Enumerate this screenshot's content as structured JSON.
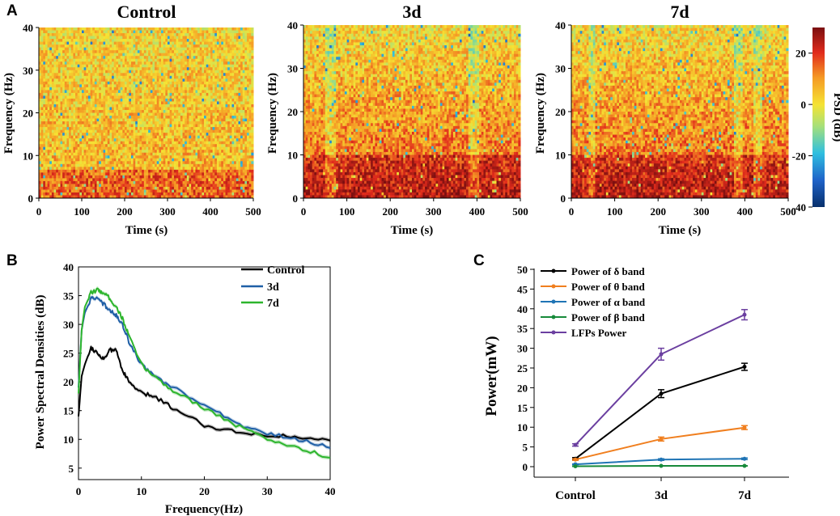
{
  "panel_labels": {
    "a": "A",
    "b": "B",
    "c": "C"
  },
  "colors": {
    "control": "#000000",
    "d3": "#1f5fa6",
    "d7": "#2db52d",
    "delta": "#000000",
    "theta": "#f07f1f",
    "alpha": "#1f74b5",
    "beta": "#178a3a",
    "lfp": "#6b3fa0"
  },
  "chart_data": [
    {
      "type": "heatmap",
      "title": "Control",
      "xlabel": "Time (s)",
      "ylabel": "Frequency (Hz)",
      "xlim": [
        0,
        500
      ],
      "ylim": [
        0,
        40
      ],
      "xticks": [
        "0",
        "100",
        "200",
        "300",
        "400",
        "500"
      ],
      "yticks": [
        "0",
        "10",
        "20",
        "30",
        "40"
      ],
      "strong_band_hz": [
        0,
        7
      ]
    },
    {
      "type": "heatmap",
      "title": "3d",
      "xlabel": "Time (s)",
      "ylabel": "Frequency (Hz)",
      "xlim": [
        0,
        500
      ],
      "ylim": [
        0,
        40
      ],
      "xticks": [
        "0",
        "100",
        "200",
        "300",
        "400",
        "500"
      ],
      "yticks": [
        "0",
        "10",
        "20",
        "30",
        "40"
      ],
      "strong_band_hz": [
        0,
        10
      ]
    },
    {
      "type": "heatmap",
      "title": "7d",
      "xlabel": "Time (s)",
      "ylabel": "Frequency (Hz)",
      "xlim": [
        0,
        500
      ],
      "ylim": [
        0,
        40
      ],
      "xticks": [
        "0",
        "100",
        "200",
        "300",
        "400",
        "500"
      ],
      "yticks": [
        "0",
        "10",
        "20",
        "30",
        "40"
      ],
      "strong_band_hz": [
        0,
        10
      ],
      "colorbar": {
        "label": "PSD (dB)",
        "range": [
          -40,
          30
        ],
        "ticks": [
          "20",
          "0",
          "-20",
          "-40"
        ]
      }
    },
    {
      "type": "line",
      "xlabel": "Frequency(Hz)",
      "ylabel": "Power Spectral Densities (dB)",
      "xlim": [
        0,
        40
      ],
      "ylim": [
        3,
        40
      ],
      "xticks": [
        "0",
        "10",
        "20",
        "30",
        "40"
      ],
      "yticks": [
        "5",
        "10",
        "15",
        "20",
        "25",
        "30",
        "35",
        "40"
      ],
      "legend_position": "top-right",
      "series": [
        {
          "name": "Control",
          "color": "#000000",
          "x": [
            0,
            0.5,
            1,
            2,
            3,
            4,
            5,
            6,
            7,
            8,
            10,
            12,
            15,
            20,
            25,
            30,
            35,
            40
          ],
          "values": [
            14,
            21,
            23,
            26,
            25,
            24,
            25.5,
            25.5,
            22,
            20,
            18,
            17.5,
            15.5,
            12.5,
            11.3,
            10.8,
            10.3,
            9.8
          ]
        },
        {
          "name": "3d",
          "color": "#1f5fa6",
          "x": [
            0,
            0.5,
            1,
            2,
            3,
            4,
            5,
            6,
            7,
            8,
            10,
            12,
            15,
            20,
            25,
            30,
            35,
            40
          ],
          "values": [
            19,
            29,
            32,
            34.5,
            34.5,
            33.5,
            32.5,
            31.5,
            30,
            27,
            23,
            21,
            19,
            16,
            12.8,
            11,
            10,
            8.5
          ]
        },
        {
          "name": "7d",
          "color": "#2db52d",
          "x": [
            0,
            0.5,
            1,
            2,
            3,
            4,
            5,
            6,
            7,
            8,
            10,
            12,
            15,
            20,
            25,
            30,
            35,
            40
          ],
          "values": [
            18,
            29,
            33,
            35.5,
            36,
            35.5,
            34.5,
            33,
            31,
            28,
            23,
            21,
            18.5,
            15.5,
            12.5,
            10,
            8.5,
            6.8
          ]
        }
      ]
    },
    {
      "type": "line",
      "xlabel": "",
      "ylabel": "Power(mW)",
      "ylim": [
        0,
        50
      ],
      "categories": [
        "Control",
        "3d",
        "7d"
      ],
      "yticks": [
        "0",
        "5",
        "10",
        "15",
        "20",
        "25",
        "30",
        "35",
        "40",
        "45",
        "50"
      ],
      "legend_position": "top-left",
      "series": [
        {
          "name": "Power of δ band",
          "color": "#000000",
          "values": [
            2,
            18.5,
            25.3
          ],
          "errors": [
            0.3,
            1,
            0.9
          ]
        },
        {
          "name": "Power of θ band",
          "color": "#f07f1f",
          "values": [
            1.8,
            7,
            9.9
          ],
          "errors": [
            0.2,
            0.5,
            0.5
          ]
        },
        {
          "name": "Power of α band",
          "color": "#1f74b5",
          "values": [
            0.6,
            1.8,
            2
          ],
          "errors": [
            0.1,
            0.2,
            0.2
          ]
        },
        {
          "name": "Power of β band",
          "color": "#178a3a",
          "values": [
            0.1,
            0.2,
            0.2
          ],
          "errors": [
            0.05,
            0.05,
            0.05
          ]
        },
        {
          "name": "LFPs Power",
          "color": "#6b3fa0",
          "values": [
            5.5,
            28.5,
            38.5
          ],
          "errors": [
            0.3,
            1.5,
            1.3
          ]
        }
      ]
    }
  ]
}
